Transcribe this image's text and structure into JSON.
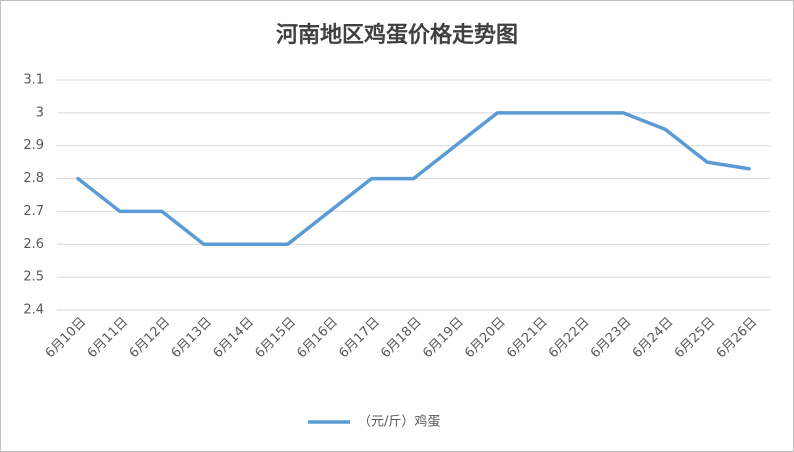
{
  "chart_data": {
    "type": "line",
    "title": "河南地区鸡蛋价格走势图",
    "categories": [
      "6月10日",
      "6月11日",
      "6月12日",
      "6月13日",
      "6月14日",
      "6月15日",
      "6月16日",
      "6月17日",
      "6月18日",
      "6月19日",
      "6月20日",
      "6月21日",
      "6月22日",
      "6月23日",
      "6月24日",
      "6月25日",
      "6月26日"
    ],
    "series": [
      {
        "name": "（元/斤）鸡蛋",
        "color": "#5b9bd5",
        "values": [
          2.8,
          2.7,
          2.7,
          2.6,
          2.6,
          2.6,
          2.7,
          2.8,
          2.8,
          2.9,
          3.0,
          3.0,
          3.0,
          3.0,
          2.95,
          2.85,
          2.83
        ]
      }
    ],
    "ylim": [
      2.4,
      3.1
    ],
    "yticks": [
      2.4,
      2.5,
      2.6,
      2.7,
      2.8,
      2.9,
      3,
      3.1
    ],
    "grid": true,
    "legend": "bottom"
  }
}
